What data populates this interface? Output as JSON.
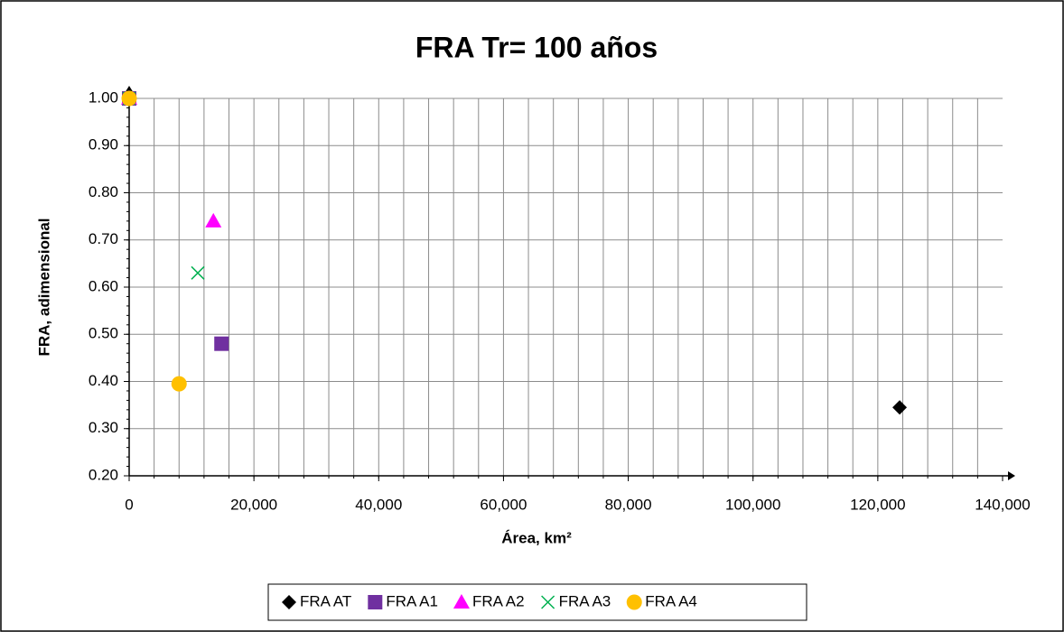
{
  "chart_data": {
    "type": "scatter",
    "title": "FRA Tr= 100 años",
    "x_label": "Área, km²",
    "y_label": "FRA, adimensional",
    "xlim": [
      0,
      140000
    ],
    "xticks": [
      0,
      {
        "value": 20000,
        "label": "20,000"
      },
      {
        "value": 40000,
        "label": "40,000"
      },
      {
        "value": 60000,
        "label": "60,000"
      },
      {
        "value": 80000,
        "label": "80,000"
      },
      {
        "value": 100000,
        "label": "100,000"
      },
      {
        "value": 120000,
        "label": "120,000"
      },
      {
        "value": 140000,
        "label": "140,000"
      }
    ],
    "x_minor_step": 4000,
    "ylim": [
      0.2,
      1.0
    ],
    "yticks": [
      {
        "value": 0.2,
        "label": "0.20"
      },
      {
        "value": 0.3,
        "label": "0.30"
      },
      {
        "value": 0.4,
        "label": "0.40"
      },
      {
        "value": 0.5,
        "label": "0.50"
      },
      {
        "value": 0.6,
        "label": "0.60"
      },
      {
        "value": 0.7,
        "label": "0.70"
      },
      {
        "value": 0.8,
        "label": "0.80"
      },
      {
        "value": 0.9,
        "label": "0.90"
      },
      {
        "value": 1.0,
        "label": "1.00"
      }
    ],
    "y_minor_step": 0.02,
    "grid": true,
    "legend": "bottom",
    "series": [
      {
        "name": "FRA AT",
        "color": "#000000",
        "marker": "diamond",
        "x": [
          0,
          123500
        ],
        "values": [
          1.0,
          0.345
        ]
      },
      {
        "name": "FRA A1",
        "color": "#7030a0",
        "marker": "square",
        "x": [
          0,
          14800
        ],
        "values": [
          1.0,
          0.48
        ]
      },
      {
        "name": "FRA A2",
        "color": "#ff00ff",
        "marker": "triangle",
        "x": [
          0,
          13500
        ],
        "values": [
          1.0,
          0.74
        ]
      },
      {
        "name": "FRA A3",
        "color": "#00b050",
        "marker": "x",
        "x": [
          0,
          11000
        ],
        "values": [
          1.0,
          0.63
        ]
      },
      {
        "name": "FRA A4",
        "color": "#ffc000",
        "marker": "circle",
        "x": [
          0,
          8000
        ],
        "values": [
          1.0,
          0.395
        ]
      }
    ]
  }
}
